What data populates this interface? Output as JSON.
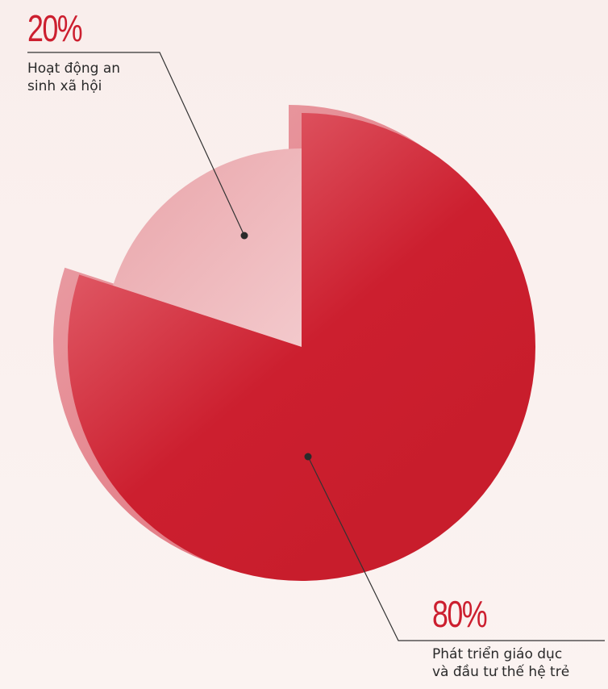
{
  "chart_data": {
    "type": "pie",
    "slices": [
      {
        "label_pct": "20%",
        "label": "Hoạt động an sinh xã hội",
        "line1": "Hoạt động an",
        "line2": "sinh xã hội",
        "value": 20,
        "color": "#e8a2a7"
      },
      {
        "label_pct": "80%",
        "label": "Phát triển giáo dục và đầu tư thế hệ trẻ",
        "line1": "Phát triển giáo dục",
        "line2": "và đầu tư thế hệ trẻ",
        "value": 80,
        "color": "#cc1f2f"
      }
    ],
    "title": "",
    "legend": "callouts"
  },
  "colors": {
    "accent": "#cc1f2f",
    "accent_light": "#e8a2a7",
    "background": "#f9eeec",
    "leader_line": "#333333"
  }
}
